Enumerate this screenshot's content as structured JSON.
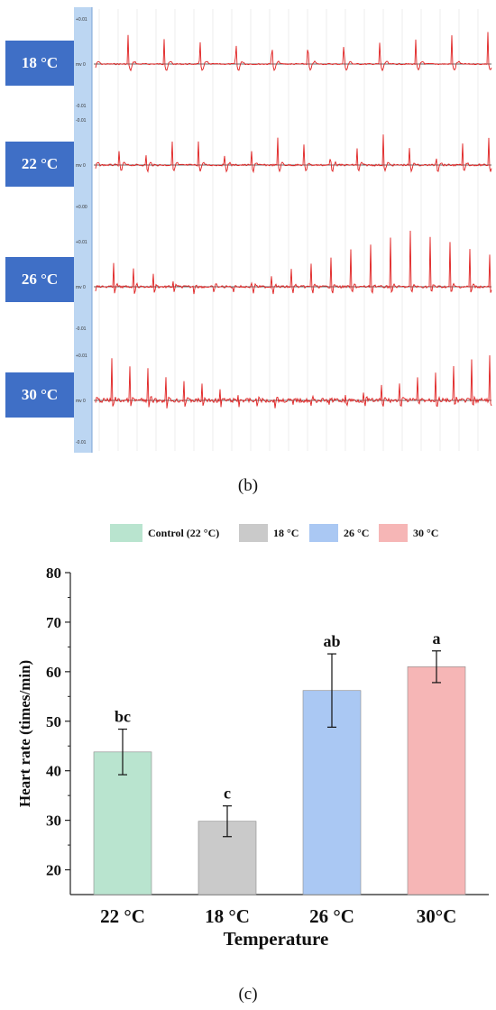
{
  "panel_b": {
    "caption": "(b)",
    "strips": [
      {
        "label": "18 °C",
        "upper_tick": "+0.01",
        "mid_tick": "mv  0",
        "lower_tick": "-0.01",
        "beats": 11,
        "noise": 0.25
      },
      {
        "label": "22 °C",
        "upper_tick": "-0.01",
        "mid_tick": "mv  0",
        "lower_tick": "+0.00",
        "beats": 15,
        "noise": 0.35
      },
      {
        "label": "26 °C",
        "upper_tick": "+0.01",
        "mid_tick": "mv  0",
        "lower_tick": "-0.01",
        "beats": 20,
        "noise": 0.45
      },
      {
        "label": "30 °C",
        "upper_tick": "+0.01",
        "mid_tick": "mv  0",
        "lower_tick": "-0.01",
        "beats": 22,
        "noise": 0.8
      }
    ]
  },
  "panel_c": {
    "caption": "(c)"
  },
  "colors": {
    "label_bg": "#3f6fc6",
    "ecg_trace": "#e02020",
    "axis_strip": "#bcd6f2"
  },
  "chart_data": {
    "type": "bar",
    "categories": [
      "22 °C",
      "18 °C",
      "26 °C",
      "30°C"
    ],
    "values": [
      43.8,
      29.8,
      56.2,
      61.0
    ],
    "errors": [
      4.6,
      3.1,
      7.4,
      3.2
    ],
    "significance": [
      "bc",
      "c",
      "ab",
      "a"
    ],
    "colors": [
      "#b9e4cf",
      "#cacaca",
      "#aac8f3",
      "#f6b6b6"
    ],
    "legend": [
      "Control (22 °C)",
      "18 °C",
      "26 °C",
      "30 °C"
    ],
    "legend_position": "top",
    "xlabel": "Temperature",
    "ylabel": "Heart rate (times/min)",
    "ylim": [
      15,
      80
    ],
    "yticks": [
      "20",
      "30",
      "40",
      "50",
      "60",
      "70",
      "80"
    ],
    "grid": false
  }
}
